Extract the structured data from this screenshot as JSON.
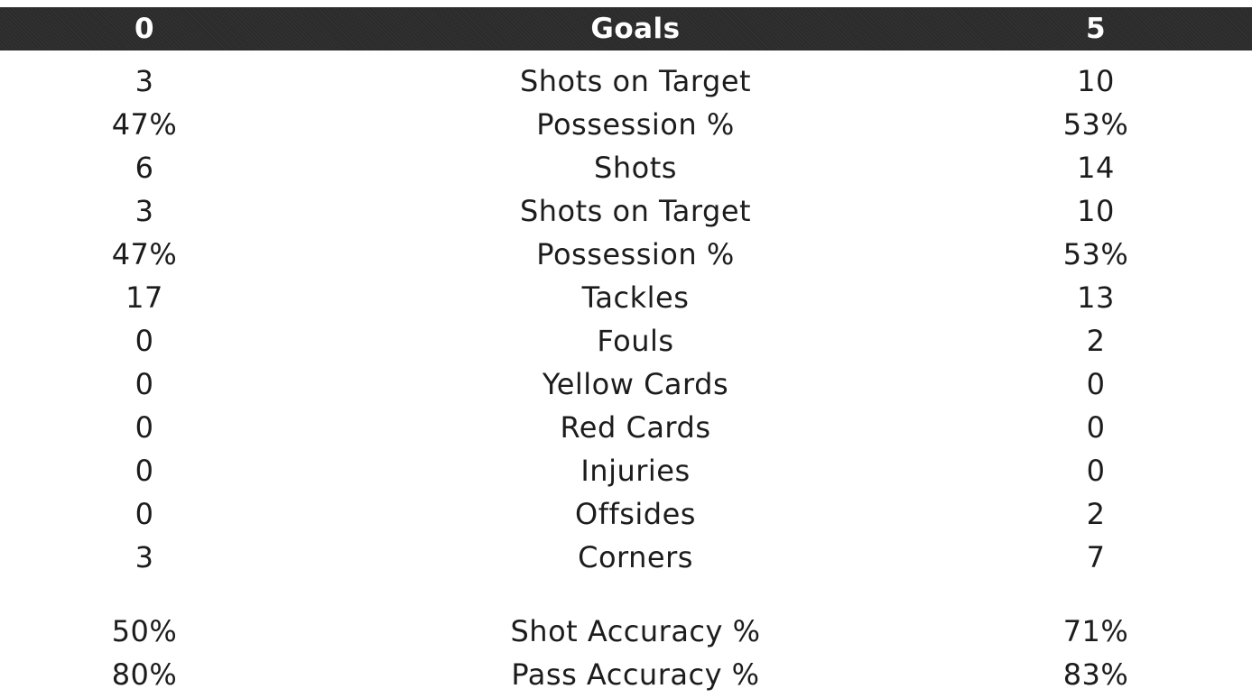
{
  "header": {
    "left_value": "0",
    "label": "Goals",
    "right_value": "5"
  },
  "stats": [
    {
      "left": "3",
      "label": "Shots on Target",
      "right": "10"
    },
    {
      "left": "47%",
      "label": "Possession %",
      "right": "53%"
    },
    {
      "left": "6",
      "label": "Shots",
      "right": "14"
    },
    {
      "left": "3",
      "label": "Shots on Target",
      "right": "10"
    },
    {
      "left": "47%",
      "label": "Possession %",
      "right": "53%"
    },
    {
      "left": "17",
      "label": "Tackles",
      "right": "13"
    },
    {
      "left": "0",
      "label": "Fouls",
      "right": "2"
    },
    {
      "left": "0",
      "label": "Yellow Cards",
      "right": "0"
    },
    {
      "left": "0",
      "label": "Red Cards",
      "right": "0"
    },
    {
      "left": "0",
      "label": "Injuries",
      "right": "0"
    },
    {
      "left": "0",
      "label": "Offsides",
      "right": "2"
    },
    {
      "left": "3",
      "label": "Corners",
      "right": "7"
    }
  ],
  "accuracy": [
    {
      "left": "50%",
      "label": "Shot Accuracy %",
      "right": "71%"
    },
    {
      "left": "80%",
      "label": "Pass Accuracy %",
      "right": "83%"
    }
  ],
  "colors": {
    "header_bg": "#2b2b2b",
    "header_text": "#ffffff",
    "body_text": "#1c1c1c",
    "background": "#ffffff"
  }
}
